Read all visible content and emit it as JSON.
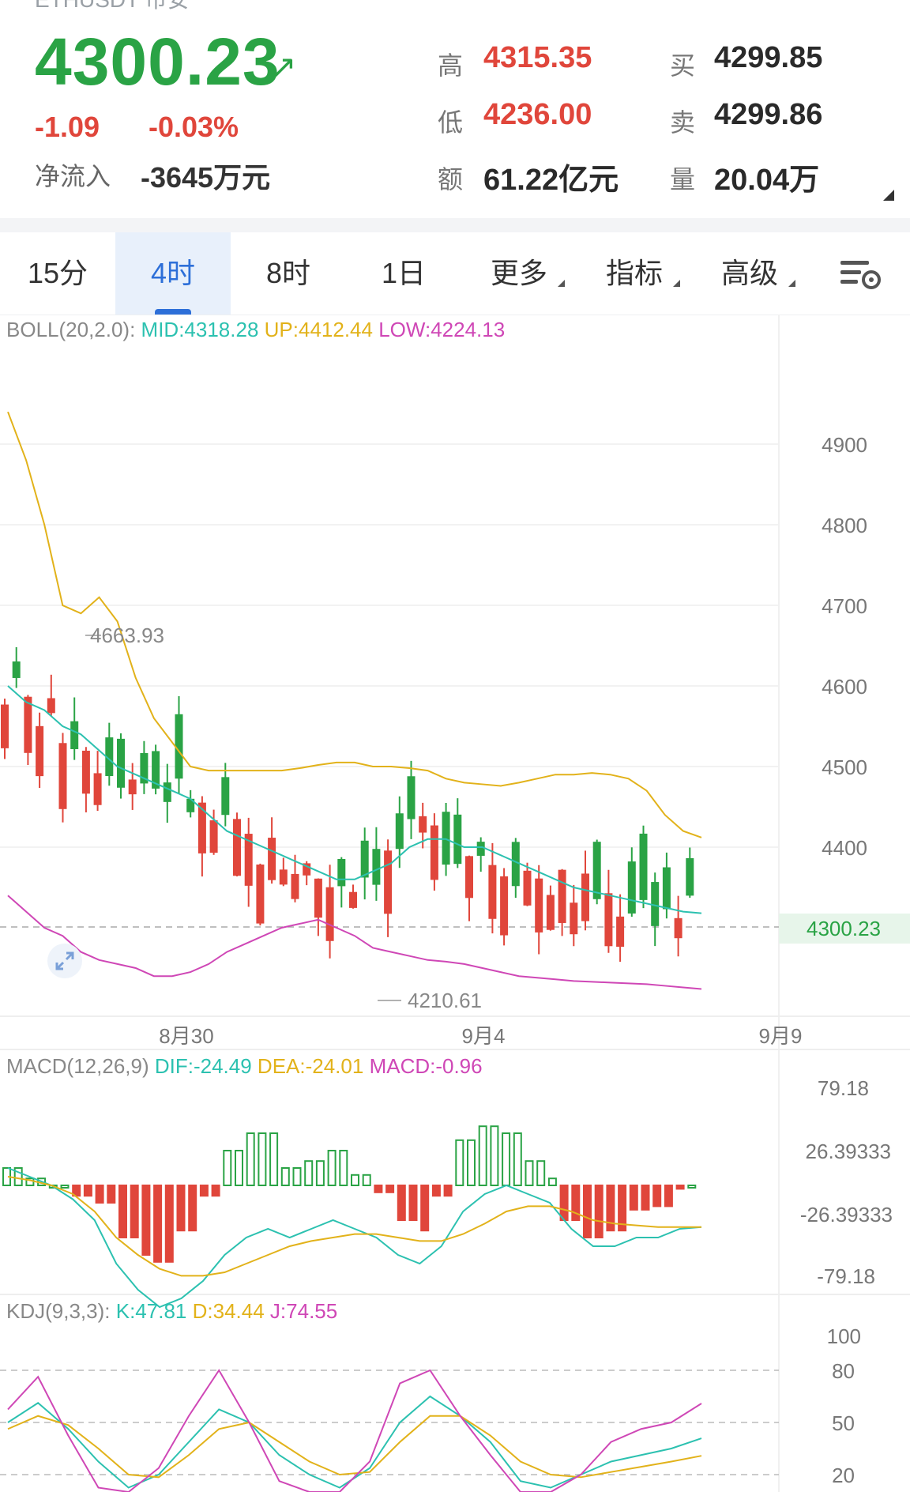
{
  "header": {
    "symbol": "ETHUSDT 币安",
    "last_price": "4300.23",
    "change": "-1.09",
    "change_pct": "-0.03%",
    "net_flow_label": "净流入",
    "net_flow_value": "-3645万元",
    "high_label": "高",
    "high_value": "4315.35",
    "low_label": "低",
    "low_value": "4236.00",
    "amount_label": "额",
    "amount_value": "61.22亿元",
    "bid_label": "买",
    "bid_value": "4299.85",
    "ask_label": "卖",
    "ask_value": "4299.86",
    "volume_label": "量",
    "volume_value": "20.04万"
  },
  "tabs": [
    {
      "label": "15分",
      "active": false
    },
    {
      "label": "4时",
      "active": true
    },
    {
      "label": "8时",
      "active": false
    },
    {
      "label": "1日",
      "active": false
    },
    {
      "label": "更多",
      "active": false
    },
    {
      "label": "指标",
      "active": false
    },
    {
      "label": "高级",
      "active": false
    }
  ],
  "boll": {
    "name": "BOLL(20,2.0):",
    "mid": "MID:4318.28",
    "up": "UP:4412.44",
    "low": "LOW:4224.13"
  },
  "price_axis": [
    "4900",
    "4800",
    "4700",
    "4600",
    "4500",
    "4400"
  ],
  "current_price_tag": "4300.23",
  "high_marker": "4663.93",
  "low_marker": "4210.61",
  "date_axis": [
    "8月30",
    "9月4",
    "9月9"
  ],
  "macd": {
    "name": "MACD(12,26,9)",
    "dif": "DIF:-24.49",
    "dea": "DEA:-24.01",
    "macd": "MACD:-0.96",
    "axis": [
      "79.18",
      "26.39333",
      "-26.39333",
      "-79.18"
    ]
  },
  "kdj": {
    "name": "KDJ(9,3,3):",
    "k": "K:47.81",
    "d": "D:34.44",
    "j": "J:74.55",
    "axis": [
      "100",
      "80",
      "50",
      "20"
    ]
  },
  "colors": {
    "up": "#2aa345",
    "down": "#e0463b",
    "boll_mid": "#2cc1b0",
    "boll_up": "#e2b21a",
    "boll_low": "#cf47b6",
    "accent": "#2d6fd8"
  },
  "chart_data": [
    {
      "type": "candlestick",
      "title": "BOLL(20,2.0)",
      "ylim": [
        4180,
        5000
      ],
      "series": [
        {
          "name": "MID",
          "values": [
            4600,
            4580,
            4570,
            4550,
            4540,
            4520,
            4500,
            4490,
            4480,
            4470,
            4460,
            4440,
            4420,
            4410,
            4400,
            4390,
            4380,
            4370,
            4360,
            4360,
            4370,
            4380,
            4400,
            4410,
            4410,
            4400,
            4400,
            4390,
            4380,
            4370,
            4360,
            4350,
            4345,
            4340,
            4335,
            4330,
            4325,
            4320,
            4318
          ]
        },
        {
          "name": "UP",
          "values": [
            4940,
            4880,
            4800,
            4700,
            4690,
            4710,
            4680,
            4610,
            4560,
            4530,
            4500,
            4495,
            4495,
            4495,
            4495,
            4495,
            4498,
            4502,
            4505,
            4505,
            4500,
            4500,
            4498,
            4495,
            4485,
            4480,
            4478,
            4476,
            4480,
            4485,
            4490,
            4490,
            4492,
            4490,
            4485,
            4470,
            4440,
            4420,
            4412
          ]
        },
        {
          "name": "LOW",
          "values": [
            4340,
            4320,
            4300,
            4290,
            4270,
            4260,
            4255,
            4250,
            4240,
            4240,
            4245,
            4255,
            4270,
            4280,
            4290,
            4300,
            4305,
            4310,
            4300,
            4290,
            4275,
            4270,
            4265,
            4260,
            4258,
            4255,
            4250,
            4245,
            4240,
            4238,
            4236,
            4234,
            4233,
            4232,
            4231,
            4230,
            4228,
            4226,
            4224
          ]
        }
      ],
      "markers": {
        "high": 4663.93,
        "low": 4210.61,
        "last": 4300.23
      }
    },
    {
      "type": "bar",
      "title": "MACD(12,26,9)",
      "ylim": [
        -79.18,
        79.18
      ],
      "series": [
        {
          "name": "DIF",
          "values": [
            10,
            5,
            0,
            -8,
            -20,
            -45,
            -60,
            -70,
            -65,
            -55,
            -40,
            -30,
            -25,
            -30,
            -25,
            -20,
            -25,
            -30,
            -40,
            -45,
            -35,
            -15,
            -5,
            0,
            -5,
            -10,
            -25,
            -35,
            -35,
            -30,
            -30,
            -25,
            -24
          ]
        },
        {
          "name": "DEA",
          "values": [
            5,
            3,
            0,
            -5,
            -15,
            -30,
            -40,
            -48,
            -52,
            -52,
            -50,
            -45,
            -40,
            -35,
            -32,
            -30,
            -28,
            -28,
            -30,
            -32,
            -32,
            -28,
            -22,
            -15,
            -12,
            -12,
            -15,
            -20,
            -22,
            -23,
            -24,
            -24,
            -24
          ]
        }
      ]
    },
    {
      "type": "line",
      "title": "KDJ(9,3,3)",
      "ylim": [
        0,
        100
      ],
      "series": [
        {
          "name": "K",
          "values": [
            60,
            75,
            55,
            30,
            10,
            20,
            45,
            70,
            60,
            35,
            20,
            10,
            25,
            60,
            80,
            65,
            45,
            15,
            10,
            20,
            30,
            35,
            40,
            47.81
          ]
        },
        {
          "name": "D",
          "values": [
            55,
            65,
            58,
            40,
            20,
            18,
            35,
            55,
            60,
            45,
            30,
            20,
            22,
            45,
            65,
            65,
            50,
            30,
            20,
            18,
            22,
            26,
            30,
            34.44
          ]
        },
        {
          "name": "J",
          "values": [
            70,
            95,
            50,
            10,
            0,
            25,
            65,
            100,
            60,
            15,
            0,
            0,
            30,
            90,
            100,
            65,
            35,
            0,
            0,
            20,
            45,
            55,
            60,
            74.55
          ]
        }
      ]
    }
  ]
}
